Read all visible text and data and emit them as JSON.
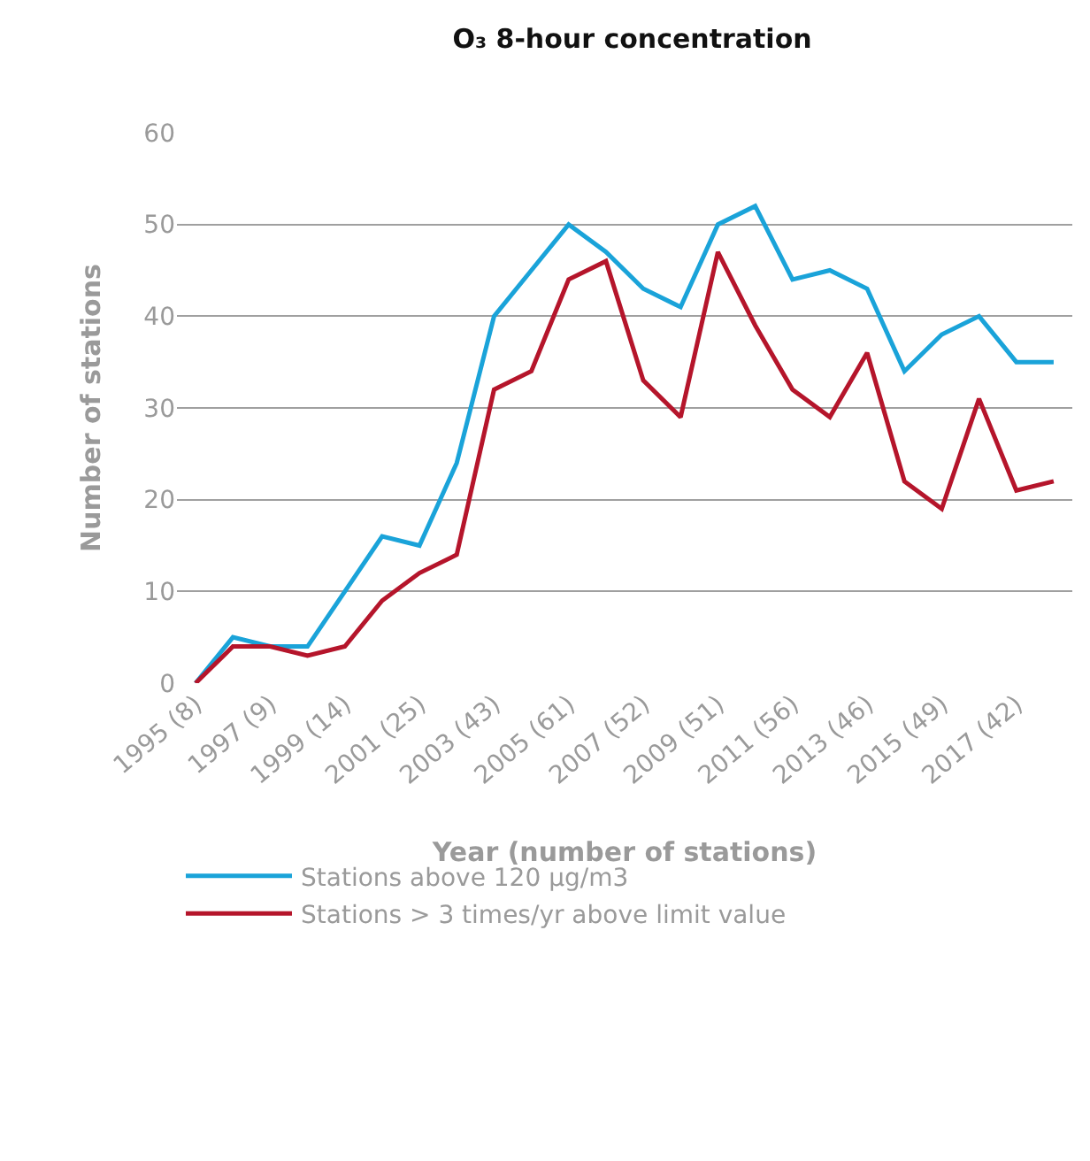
{
  "chart_data": {
    "type": "line",
    "title": "O₃ 8-hour concentration",
    "xlabel": "Year (number of stations)",
    "ylabel": "Number of stations",
    "categories": [
      "1995 (8)",
      null,
      "1997 (9)",
      null,
      "1999 (14)",
      null,
      "2001 (25)",
      null,
      "2003 (43)",
      null,
      "2005 (61)",
      null,
      "2007 (52)",
      null,
      "2009 (51)",
      null,
      "2011 (56)",
      null,
      "2013 (46)",
      null,
      "2015 (49)",
      null,
      "2017 (42)",
      null
    ],
    "series": [
      {
        "name": "Stations above 120 μg/m3",
        "color": "#1aa3d9",
        "values": [
          0,
          5,
          4,
          4,
          10,
          16,
          15,
          24,
          40,
          45,
          50,
          47,
          43,
          41,
          50,
          52,
          44,
          45,
          43,
          34,
          38,
          40,
          35,
          35
        ]
      },
      {
        "name": "Stations > 3 times/yr above limit value",
        "color": "#b5152b",
        "values": [
          0,
          4,
          4,
          3,
          4,
          9,
          12,
          14,
          32,
          34,
          44,
          46,
          33,
          29,
          47,
          39,
          32,
          29,
          36,
          22,
          19,
          31,
          21,
          22
        ]
      }
    ],
    "ylim": [
      0,
      60
    ],
    "yticks": [
      0,
      10,
      20,
      30,
      40,
      50,
      60
    ],
    "grid": "y",
    "legend": "bottom",
    "marker": "none",
    "line_style": "solid"
  }
}
